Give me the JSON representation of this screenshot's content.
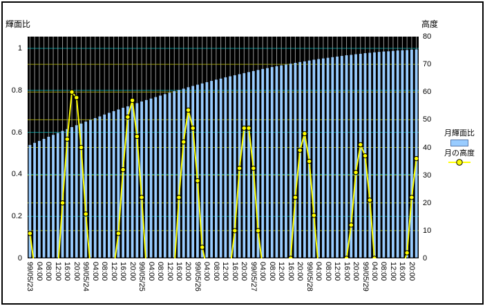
{
  "chart_data": {
    "type": "combo",
    "title": "",
    "left_axis": {
      "title": "輝面比",
      "min": 0,
      "max": 1,
      "tick_step": 0.2,
      "tick_labels": [
        "1",
        "0.8",
        "0.6",
        "0.4",
        "0.2",
        "0"
      ],
      "tick_values": [
        1,
        0.8,
        0.6,
        0.4,
        0.2,
        0
      ]
    },
    "right_axis": {
      "title": "高度",
      "min": 0,
      "max": 80,
      "tick_step": 10,
      "tick_labels": [
        "80",
        "70",
        "60",
        "50",
        "40",
        "30",
        "20",
        "10",
        "0"
      ],
      "tick_values": [
        80,
        70,
        60,
        50,
        40,
        30,
        20,
        10,
        0
      ]
    },
    "x_axis": {
      "interval_hours": 2,
      "label_every_n_categories": 2,
      "tick_labels": [
        "99/05/23",
        "04:00",
        "08:00",
        "12:00",
        "16:00",
        "20:00",
        "99/05/24",
        "04:00",
        "08:00",
        "12:00",
        "16:00",
        "20:00",
        "99/05/25",
        "04:00",
        "08:00",
        "12:00",
        "16:00",
        "20:00",
        "99/05/26",
        "04:00",
        "08:00",
        "12:00",
        "16:00",
        "20:00",
        "99/05/27",
        "04:00",
        "08:00",
        "12:00",
        "16:00",
        "20:00",
        "99/05/28",
        "04:00",
        "08:00",
        "12:00",
        "16:00",
        "20:00",
        "99/05/29",
        "04:00",
        "08:00",
        "12:00",
        "16:00",
        "20:00"
      ]
    },
    "grid": {
      "vertical": true,
      "horizontal_left": true,
      "horizontal_right": true
    },
    "legend_position": "right",
    "series": [
      {
        "name": "月輝面比",
        "type": "bar",
        "axis": "left",
        "color": "#99CCFF",
        "values": [
          0.54,
          0.55,
          0.559,
          0.569,
          0.579,
          0.588,
          0.597,
          0.607,
          0.616,
          0.625,
          0.634,
          0.642,
          0.651,
          0.66,
          0.668,
          0.676,
          0.685,
          0.693,
          0.701,
          0.709,
          0.717,
          0.724,
          0.732,
          0.739,
          0.747,
          0.754,
          0.761,
          0.768,
          0.775,
          0.782,
          0.789,
          0.796,
          0.802,
          0.808,
          0.815,
          0.821,
          0.827,
          0.833,
          0.839,
          0.845,
          0.851,
          0.856,
          0.862,
          0.867,
          0.872,
          0.877,
          0.882,
          0.887,
          0.892,
          0.897,
          0.902,
          0.906,
          0.911,
          0.915,
          0.919,
          0.923,
          0.927,
          0.931,
          0.935,
          0.938,
          0.942,
          0.946,
          0.949,
          0.952,
          0.955,
          0.958,
          0.961,
          0.964,
          0.967,
          0.969,
          0.972,
          0.974,
          0.977,
          0.979,
          0.981,
          0.983,
          0.985,
          0.986,
          0.988,
          0.99,
          0.991,
          0.992,
          0.994,
          0.995
        ]
      },
      {
        "name": "月の高度",
        "type": "line",
        "axis": "right",
        "color": "#FFFF00",
        "marker": "circle",
        "values": [
          9,
          null,
          null,
          null,
          null,
          null,
          null,
          20,
          43,
          60,
          58,
          40,
          16,
          null,
          null,
          null,
          null,
          null,
          null,
          9,
          32,
          51,
          57,
          44,
          22,
          null,
          null,
          null,
          null,
          null,
          null,
          null,
          22,
          42,
          53.5,
          47,
          28,
          4,
          null,
          null,
          null,
          null,
          null,
          null,
          10,
          32.5,
          47,
          47,
          32.5,
          10,
          null,
          null,
          null,
          null,
          null,
          null,
          0,
          22,
          39,
          45,
          35,
          15.5,
          null,
          null,
          null,
          null,
          null,
          null,
          0,
          12,
          31,
          41,
          37,
          21,
          0,
          null,
          null,
          null,
          null,
          null,
          null,
          2,
          22,
          36
        ]
      }
    ],
    "colors": {
      "plot_background": "#000000",
      "vertical_gridline": "#989898",
      "left_gridline": "#009494",
      "right_gridline": "#9c9c00",
      "bar_fill": "#99CCFF",
      "line": "#FFFF00",
      "marker_fill": "#FFFF00",
      "marker_stroke": "#000000",
      "axis_line": "#000000"
    }
  }
}
